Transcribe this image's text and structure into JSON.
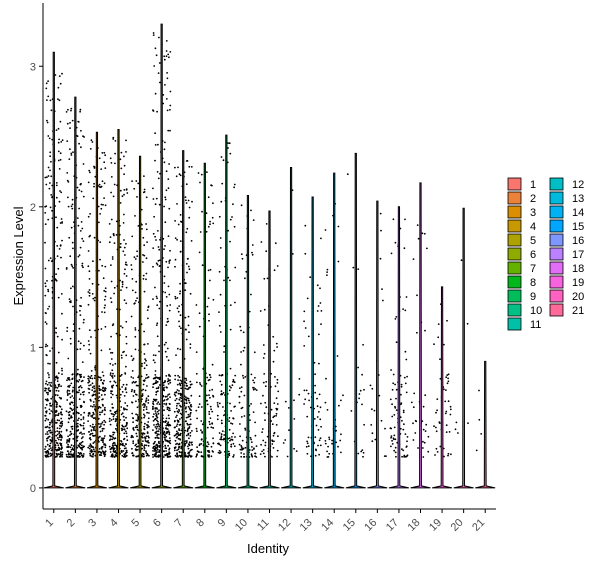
{
  "chart_data": {
    "type": "violin",
    "xlabel": "Identity",
    "ylabel": "Expression Level",
    "categories": [
      "1",
      "2",
      "3",
      "4",
      "5",
      "6",
      "7",
      "8",
      "9",
      "10",
      "11",
      "12",
      "13",
      "14",
      "15",
      "16",
      "17",
      "18",
      "19",
      "20",
      "21"
    ],
    "ylim": [
      -0.15,
      3.45
    ],
    "yticks": [
      0,
      1,
      2,
      3
    ],
    "max_values": [
      3.1,
      2.78,
      2.53,
      2.55,
      2.36,
      3.3,
      2.4,
      2.31,
      2.51,
      2.08,
      1.97,
      2.28,
      2.07,
      2.24,
      2.38,
      2.04,
      2.0,
      2.17,
      1.43,
      1.99,
      0.9
    ],
    "point_counts": [
      420,
      360,
      330,
      330,
      280,
      420,
      340,
      130,
      150,
      100,
      90,
      14,
      70,
      40,
      20,
      22,
      90,
      34,
      48,
      6,
      4
    ],
    "legend_position": "right",
    "grid": false,
    "series": [
      {
        "name": "1",
        "color": "#F8766D"
      },
      {
        "name": "2",
        "color": "#EC8239"
      },
      {
        "name": "3",
        "color": "#DB8E00"
      },
      {
        "name": "4",
        "color": "#C79800"
      },
      {
        "name": "5",
        "color": "#AEA200"
      },
      {
        "name": "6",
        "color": "#8FAA00"
      },
      {
        "name": "7",
        "color": "#64B200"
      },
      {
        "name": "8",
        "color": "#00B81B"
      },
      {
        "name": "9",
        "color": "#00BD5C"
      },
      {
        "name": "10",
        "color": "#00C085"
      },
      {
        "name": "11",
        "color": "#00C1A7"
      },
      {
        "name": "12",
        "color": "#00BFC4"
      },
      {
        "name": "13",
        "color": "#00BADE"
      },
      {
        "name": "14",
        "color": "#00B2F3"
      },
      {
        "name": "15",
        "color": "#00A6FF"
      },
      {
        "name": "16",
        "color": "#7F96FF"
      },
      {
        "name": "17",
        "color": "#BC81FF"
      },
      {
        "name": "18",
        "color": "#E26EF7"
      },
      {
        "name": "19",
        "color": "#F863DF"
      },
      {
        "name": "20",
        "color": "#FF62BF"
      },
      {
        "name": "21",
        "color": "#FF6A9A"
      }
    ]
  }
}
